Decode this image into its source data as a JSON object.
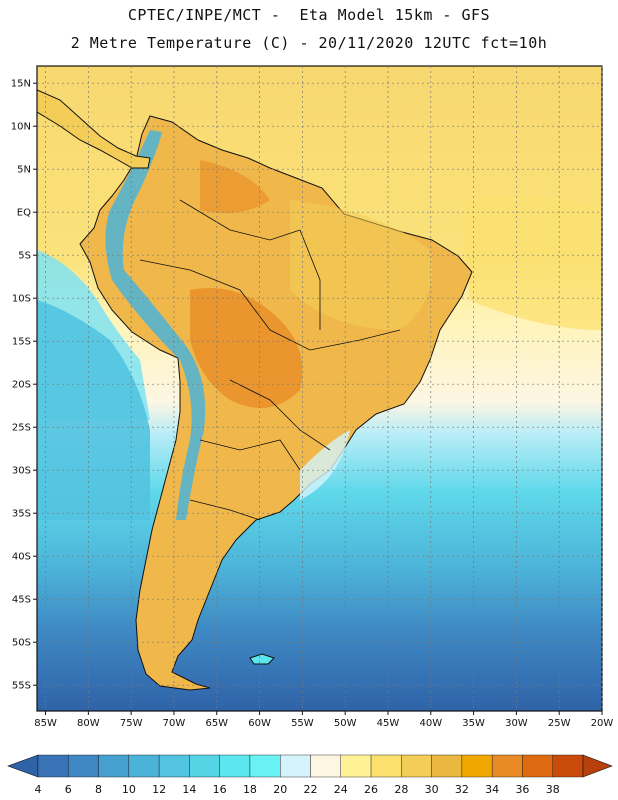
{
  "header": {
    "line1": "CPTEC/INPE/MCT -  Eta Model 15km - GFS",
    "line2": "2 Metre Temperature (C) - 20/11/2020 12UTC fct=10h"
  },
  "map": {
    "lon_range": [
      -86,
      -20
    ],
    "lat_range": [
      -58,
      17
    ],
    "lat_ticks": [
      {
        "value": 15,
        "label": "15N"
      },
      {
        "value": 10,
        "label": "10N"
      },
      {
        "value": 5,
        "label": "5N"
      },
      {
        "value": 0,
        "label": "EQ"
      },
      {
        "value": -5,
        "label": "5S"
      },
      {
        "value": -10,
        "label": "10S"
      },
      {
        "value": -15,
        "label": "15S"
      },
      {
        "value": -20,
        "label": "20S"
      },
      {
        "value": -25,
        "label": "25S"
      },
      {
        "value": -30,
        "label": "30S"
      },
      {
        "value": -35,
        "label": "35S"
      },
      {
        "value": -40,
        "label": "40S"
      },
      {
        "value": -45,
        "label": "45S"
      },
      {
        "value": -50,
        "label": "50S"
      },
      {
        "value": -55,
        "label": "55S"
      }
    ],
    "lon_ticks": [
      {
        "value": -85,
        "label": "85W"
      },
      {
        "value": -80,
        "label": "80W"
      },
      {
        "value": -75,
        "label": "75W"
      },
      {
        "value": -70,
        "label": "70W"
      },
      {
        "value": -65,
        "label": "65W"
      },
      {
        "value": -60,
        "label": "60W"
      },
      {
        "value": -55,
        "label": "55W"
      },
      {
        "value": -50,
        "label": "50W"
      },
      {
        "value": -45,
        "label": "45W"
      },
      {
        "value": -40,
        "label": "40W"
      },
      {
        "value": -35,
        "label": "35W"
      },
      {
        "value": -30,
        "label": "30W"
      },
      {
        "value": -25,
        "label": "25W"
      },
      {
        "value": -20,
        "label": "20W"
      }
    ]
  },
  "colorbar": {
    "labels": [
      "4",
      "6",
      "8",
      "10",
      "12",
      "14",
      "16",
      "18",
      "20",
      "22",
      "24",
      "26",
      "28",
      "30",
      "32",
      "34",
      "36",
      "38"
    ],
    "colors": [
      "#3a72b8",
      "#3e87c3",
      "#45a0cf",
      "#4cb3d8",
      "#52c3e0",
      "#55d4e6",
      "#5ce6ee",
      "#68f2f4",
      "#d4f4fb",
      "#fdf6e3",
      "#fff296",
      "#fbe070",
      "#f4cd58",
      "#ebb83f",
      "#f0a800",
      "#e88a26",
      "#de6a12",
      "#c94a0a",
      "#b8400d"
    ],
    "under_color": "#2f63a8",
    "over_color": "#b8400d"
  }
}
